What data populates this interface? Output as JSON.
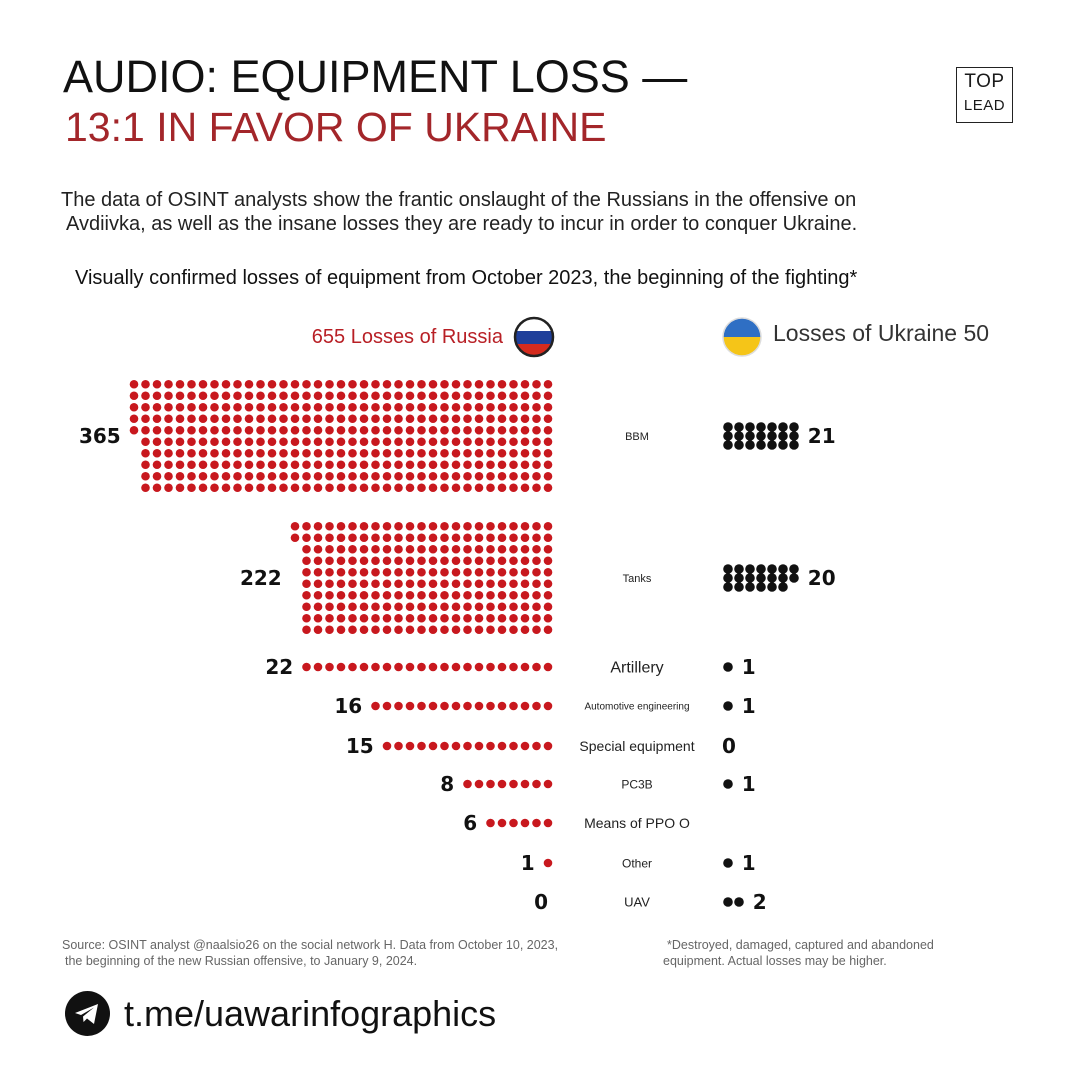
{
  "title": {
    "line1": "AUDIO: EQUIPMENT LOSS —",
    "line2": "13:1 IN FAVOR OF UKRAINE"
  },
  "logo": {
    "line1": "TOP",
    "line2": "LEAD"
  },
  "intro": {
    "line1": "The data of OSINT analysts show the frantic onslaught of the Russians in the offensive on",
    "line2": "Avdiivka, as well as the insane losses they are ready to incur in order to conquer Ukraine."
  },
  "chart_note": "Visually confirmed losses of equipment from October 2023, the beginning of the fighting*",
  "legend": {
    "russia": "655 Losses of Russia",
    "ukraine": "Losses of Ukraine 50"
  },
  "colors": {
    "russia": "#c8181e",
    "ukraine": "#111111",
    "flag_ua_top": "#2f6fc4",
    "flag_ua_bottom": "#f5c518",
    "flag_ru_white": "#ffffff",
    "flag_ru_blue": "#1f3f9a",
    "flag_ru_red": "#d52b1e"
  },
  "chart_data": {
    "type": "pictogram",
    "series": [
      {
        "name": "655 Losses of Russia",
        "values": [
          365,
          222,
          22,
          16,
          15,
          8,
          6,
          1,
          0
        ]
      },
      {
        "name": "Losses of Ukraine 50",
        "values": [
          21,
          20,
          1,
          1,
          0,
          1,
          null,
          1,
          2
        ]
      }
    ],
    "categories": [
      "BBM",
      "Tanks",
      "Artillery",
      "Automotive engineering",
      "Special equipment",
      "PC3B",
      "Means of PPO O",
      "Other",
      "UAV"
    ],
    "totals": {
      "russia": 655,
      "ukraine": 50
    }
  },
  "source": {
    "line1": "Source: OSINT analyst @naalsio26 on the social network H. Data from October 10, 2023,",
    "line2": "the beginning of the new Russian offensive, to January 9, 2024."
  },
  "footnote": {
    "line1": "*Destroyed, damaged, captured and abandoned",
    "line2": "equipment. Actual losses may be higher."
  },
  "telegram": {
    "icon": "telegram-icon",
    "link": "t.me/uawarinfographics"
  }
}
